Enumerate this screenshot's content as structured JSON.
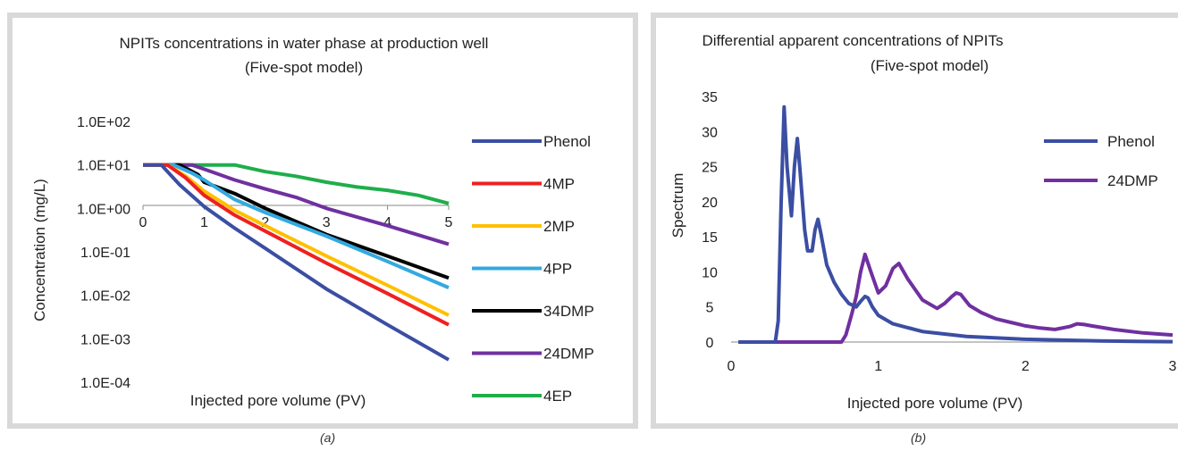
{
  "chart_data": [
    {
      "type": "line",
      "title": "NPITs concentrations in water phase at production well",
      "subtitle": "(Five-spot model)",
      "xlabel": "Injected pore volume (PV)",
      "ylabel": "Concentration (mg/L)",
      "ylog": true,
      "xlim": [
        0,
        5
      ],
      "ylim": [
        0.0001,
        100
      ],
      "xticks": [
        "0",
        "1",
        "2",
        "3",
        "4",
        "5"
      ],
      "yticks": [
        "1.0E+02",
        "1.0E+01",
        "1.0E+00",
        "1.0E-01",
        "1.0E-02",
        "1.0E-03",
        "1.0E-04"
      ],
      "legend_position": "right",
      "series": [
        {
          "name": "Phenol",
          "color": "#3b4ea3",
          "x": [
            0,
            0.3,
            0.6,
            1.0,
            1.5,
            2.0,
            3.0,
            4.0,
            5.0
          ],
          "y": [
            10,
            10,
            3.5,
            1.1,
            0.35,
            0.12,
            0.014,
            0.0021,
            0.00033
          ]
        },
        {
          "name": "4MP",
          "color": "#ef2020",
          "x": [
            0,
            0.4,
            0.7,
            1.0,
            1.5,
            2.0,
            3.0,
            4.0,
            5.0
          ],
          "y": [
            10,
            10,
            5,
            2.0,
            0.7,
            0.3,
            0.055,
            0.011,
            0.0021
          ]
        },
        {
          "name": "2MP",
          "color": "#ffc000",
          "x": [
            0,
            0.4,
            0.7,
            1.0,
            1.5,
            2.0,
            3.0,
            4.0,
            5.0
          ],
          "y": [
            10,
            10,
            5.5,
            2.5,
            0.9,
            0.4,
            0.08,
            0.017,
            0.0035
          ]
        },
        {
          "name": "4PP",
          "color": "#33a9e0",
          "x": [
            0,
            0.5,
            0.8,
            1.0,
            1.5,
            2.0,
            3.0,
            4.0,
            5.0
          ],
          "y": [
            10,
            10,
            6.5,
            4.5,
            1.6,
            0.8,
            0.23,
            0.06,
            0.015
          ]
        },
        {
          "name": "34DMP",
          "color": "#000000",
          "x": [
            0,
            0.6,
            0.9,
            1.0,
            1.5,
            2.0,
            3.0,
            4.0,
            5.0
          ],
          "y": [
            10,
            10,
            6,
            4.0,
            2.2,
            1.0,
            0.25,
            0.08,
            0.025
          ]
        },
        {
          "name": "24DMP",
          "color": "#7030a0",
          "x": [
            0,
            0.8,
            1.0,
            1.5,
            2.0,
            2.5,
            3.0,
            4.0,
            5.0
          ],
          "y": [
            10,
            10,
            8,
            4.5,
            2.8,
            1.8,
            1.0,
            0.4,
            0.15
          ]
        },
        {
          "name": "4EP",
          "color": "#1fae4b",
          "x": [
            0,
            1.5,
            2.0,
            2.5,
            3.0,
            3.5,
            4.0,
            4.5,
            5.0
          ],
          "y": [
            10,
            10,
            7,
            5.5,
            4,
            3.1,
            2.6,
            2.0,
            1.3
          ]
        }
      ]
    },
    {
      "type": "line",
      "title": "Differential apparent concentrations of NPITs",
      "subtitle": "(Five-spot model)",
      "xlabel": "Injected pore volume (PV)",
      "ylabel": "Spectrum",
      "xlim": [
        0,
        3
      ],
      "ylim": [
        0,
        35
      ],
      "xticks": [
        "0",
        "1",
        "2",
        "3"
      ],
      "yticks": [
        "0",
        "5",
        "10",
        "15",
        "20",
        "25",
        "30",
        "35"
      ],
      "legend_position": "top-right",
      "series": [
        {
          "name": "Phenol",
          "color": "#3b4ea3",
          "x": [
            0.05,
            0.3,
            0.32,
            0.34,
            0.36,
            0.38,
            0.41,
            0.43,
            0.45,
            0.47,
            0.5,
            0.52,
            0.55,
            0.57,
            0.59,
            0.61,
            0.65,
            0.7,
            0.75,
            0.8,
            0.85,
            0.88,
            0.91,
            0.93,
            0.96,
            1.0,
            1.1,
            1.3,
            1.6,
            2.0,
            2.5,
            3.0
          ],
          "y": [
            0,
            0,
            3,
            20,
            33.5,
            25,
            18,
            25,
            29,
            24,
            16,
            13,
            13,
            16,
            17.5,
            15.5,
            11,
            8.5,
            6.8,
            5.5,
            5.0,
            5.8,
            6.5,
            6.3,
            5.0,
            3.8,
            2.6,
            1.5,
            0.8,
            0.4,
            0.15,
            0.05
          ]
        },
        {
          "name": "24DMP",
          "color": "#7030a0",
          "x": [
            0.05,
            0.75,
            0.78,
            0.82,
            0.85,
            0.88,
            0.91,
            0.95,
            1.0,
            1.05,
            1.1,
            1.14,
            1.2,
            1.3,
            1.4,
            1.45,
            1.5,
            1.53,
            1.56,
            1.62,
            1.7,
            1.8,
            1.9,
            2.0,
            2.1,
            2.2,
            2.3,
            2.35,
            2.4,
            2.45,
            2.6,
            2.8,
            3.0
          ],
          "y": [
            0,
            0,
            1,
            4,
            6.5,
            10,
            12.5,
            10,
            7,
            8,
            10.5,
            11.2,
            9,
            6,
            4.8,
            5.5,
            6.5,
            7,
            6.8,
            5.2,
            4.2,
            3.3,
            2.8,
            2.3,
            2.0,
            1.8,
            2.2,
            2.6,
            2.5,
            2.3,
            1.8,
            1.3,
            1.0
          ]
        }
      ]
    }
  ],
  "captions": {
    "a": "(a)",
    "b": "(b)"
  }
}
